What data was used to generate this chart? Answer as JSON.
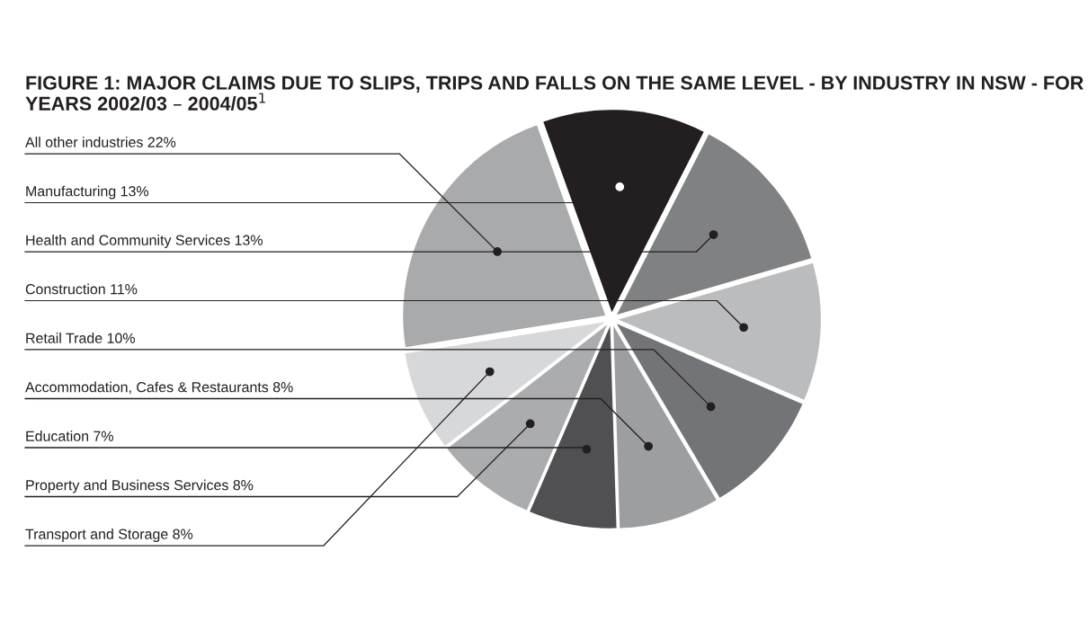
{
  "chart_data": {
    "type": "pie",
    "title": "FIGURE 1: MAJOR CLAIMS DUE TO SLIPS, TRIPS AND FALLS ON THE SAME LEVEL - BY INDUSTRY IN NSW - FOR YEARS 2002/03 – 2004/05$^{1}$",
    "categories": [
      "All other industries",
      "Manufacturing",
      "Health and Community Services",
      "Construction",
      "Retail Trade",
      "Accommodation, Cafes & Restaurants",
      "Education",
      "Property and Business Services",
      "Transport and Storage"
    ],
    "values": [
      22,
      13,
      13,
      11,
      10,
      8,
      7,
      8,
      8
    ],
    "value_labels": [
      "22%",
      "13%",
      "13%",
      "11%",
      "10%",
      "8%",
      "7%",
      "8%",
      "8%"
    ],
    "colors": [
      "#a9aaac",
      "#231f20",
      "#808183",
      "#bbbcbe",
      "#737477",
      "#9d9ea0",
      "#505052",
      "#abacae",
      "#d7d8da"
    ]
  }
}
